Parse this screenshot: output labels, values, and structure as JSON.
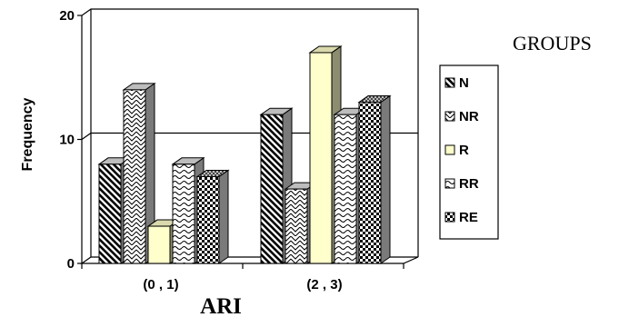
{
  "chart_data": {
    "type": "bar",
    "style": "3d-clustered-column",
    "categories": [
      "(0 , 1)",
      "(2 , 3)"
    ],
    "series": [
      {
        "name": "N",
        "values": [
          8,
          12
        ],
        "pattern": "diagonal-down",
        "color": "#ffffff"
      },
      {
        "name": "NR",
        "values": [
          14,
          6
        ],
        "pattern": "zigzag",
        "color": "#ffffff"
      },
      {
        "name": "R",
        "values": [
          3,
          17
        ],
        "pattern": "solid",
        "color": "#ffffcc"
      },
      {
        "name": "RR",
        "values": [
          8,
          12
        ],
        "pattern": "wave",
        "color": "#ffffff"
      },
      {
        "name": "RE",
        "values": [
          7,
          13
        ],
        "pattern": "checker",
        "color": "#ffffff"
      }
    ],
    "xlabel": "ARI",
    "ylabel": "Frequency",
    "yticks": [
      "0",
      "10",
      "20"
    ],
    "ylim": [
      0,
      20
    ],
    "gridlines": [
      10
    ],
    "legend_title": "GROUPS",
    "legend_position": "right"
  }
}
